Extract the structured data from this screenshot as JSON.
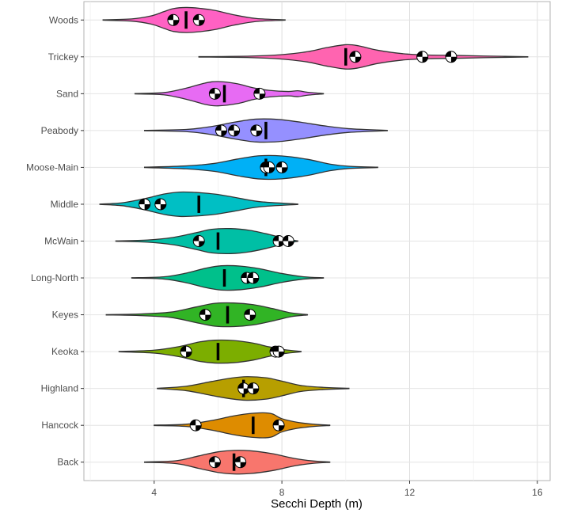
{
  "chart_data": {
    "type": "violin",
    "title": "",
    "xlabel": "Secchi Depth (m)",
    "ylabel": "",
    "xlim": [
      1.8,
      16.4
    ],
    "x_ticks": [
      4,
      8,
      12,
      16
    ],
    "x_minor_ticks": [
      2,
      6,
      10,
      14
    ],
    "grid": true,
    "legend": "none",
    "categories": [
      "Woods",
      "Trickey",
      "Sand",
      "Peabody",
      "Moose-Main",
      "Middle",
      "McWain",
      "Long-North",
      "Keyes",
      "Keoka",
      "Highland",
      "Hancock",
      "Back"
    ],
    "series": [
      {
        "name": "Woods",
        "color": "#F8766D",
        "fill": "#FF61C3",
        "min": 2.4,
        "max": 8.1,
        "median": 5.0,
        "profile": [
          [
            2.4,
            0.01
          ],
          [
            3.3,
            0.06
          ],
          [
            3.9,
            0.22
          ],
          [
            4.3,
            0.45
          ],
          [
            4.6,
            0.62
          ],
          [
            5.0,
            0.68
          ],
          [
            5.4,
            0.64
          ],
          [
            5.9,
            0.52
          ],
          [
            6.5,
            0.28
          ],
          [
            7.2,
            0.08
          ],
          [
            8.1,
            0.01
          ]
        ],
        "markers": [
          4.6,
          5.4
        ]
      },
      {
        "name": "Trickey",
        "fill": "#FF64B0",
        "min": 5.4,
        "max": 15.7,
        "median": 10.0,
        "profile": [
          [
            5.4,
            0.01
          ],
          [
            7.0,
            0.04
          ],
          [
            8.0,
            0.12
          ],
          [
            8.8,
            0.28
          ],
          [
            9.4,
            0.5
          ],
          [
            10.0,
            0.66
          ],
          [
            10.4,
            0.6
          ],
          [
            11.0,
            0.36
          ],
          [
            11.8,
            0.17
          ],
          [
            12.6,
            0.1
          ],
          [
            13.4,
            0.08
          ],
          [
            14.5,
            0.04
          ],
          [
            15.7,
            0.01
          ]
        ],
        "markers": [
          10.3,
          12.4,
          13.3
        ]
      },
      {
        "name": "Sand",
        "fill": "#E76BF3",
        "min": 3.4,
        "max": 9.3,
        "median": 6.2,
        "profile": [
          [
            3.4,
            0.01
          ],
          [
            4.3,
            0.06
          ],
          [
            5.0,
            0.3
          ],
          [
            5.6,
            0.58
          ],
          [
            6.0,
            0.66
          ],
          [
            6.6,
            0.54
          ],
          [
            7.1,
            0.32
          ],
          [
            7.6,
            0.18
          ],
          [
            8.2,
            0.12
          ],
          [
            8.5,
            0.16
          ],
          [
            8.8,
            0.08
          ],
          [
            9.3,
            0.01
          ]
        ],
        "markers": [
          5.9,
          7.3
        ]
      },
      {
        "name": "Peabody",
        "fill": "#9590FF",
        "min": 3.7,
        "max": 11.3,
        "median": 7.5,
        "profile": [
          [
            3.7,
            0.01
          ],
          [
            5.0,
            0.06
          ],
          [
            5.8,
            0.22
          ],
          [
            6.5,
            0.45
          ],
          [
            7.2,
            0.62
          ],
          [
            7.9,
            0.6
          ],
          [
            8.6,
            0.45
          ],
          [
            9.3,
            0.26
          ],
          [
            10.1,
            0.1
          ],
          [
            11.3,
            0.01
          ]
        ],
        "markers": [
          6.1,
          6.5,
          7.2
        ]
      },
      {
        "name": "Moose-Main",
        "fill": "#00B0F6",
        "min": 3.7,
        "max": 11.0,
        "median": 7.5,
        "profile": [
          [
            3.7,
            0.01
          ],
          [
            5.0,
            0.08
          ],
          [
            5.9,
            0.22
          ],
          [
            6.6,
            0.45
          ],
          [
            7.3,
            0.63
          ],
          [
            8.0,
            0.62
          ],
          [
            8.8,
            0.44
          ],
          [
            9.5,
            0.18
          ],
          [
            10.1,
            0.06
          ],
          [
            11.0,
            0.01
          ]
        ],
        "markers": [
          7.5,
          7.6,
          8.0
        ]
      },
      {
        "name": "Middle",
        "fill": "#00BFC4",
        "min": 2.3,
        "max": 8.5,
        "median": 5.4,
        "profile": [
          [
            2.3,
            0.01
          ],
          [
            3.0,
            0.08
          ],
          [
            3.7,
            0.3
          ],
          [
            4.3,
            0.55
          ],
          [
            4.8,
            0.66
          ],
          [
            5.3,
            0.64
          ],
          [
            5.9,
            0.55
          ],
          [
            6.5,
            0.38
          ],
          [
            7.3,
            0.14
          ],
          [
            8.5,
            0.01
          ]
        ],
        "markers": [
          3.7,
          4.2
        ]
      },
      {
        "name": "McWain",
        "fill": "#00BFA5",
        "min": 2.8,
        "max": 8.5,
        "median": 6.0,
        "profile": [
          [
            2.8,
            0.01
          ],
          [
            3.8,
            0.06
          ],
          [
            4.6,
            0.2
          ],
          [
            5.3,
            0.45
          ],
          [
            5.8,
            0.64
          ],
          [
            6.4,
            0.68
          ],
          [
            7.0,
            0.58
          ],
          [
            7.6,
            0.36
          ],
          [
            8.1,
            0.14
          ],
          [
            8.5,
            0.01
          ]
        ],
        "markers": [
          5.4,
          7.9,
          8.2
        ]
      },
      {
        "name": "Long-North",
        "fill": "#00C08B",
        "min": 3.3,
        "max": 9.3,
        "median": 6.2,
        "profile": [
          [
            3.3,
            0.01
          ],
          [
            4.3,
            0.06
          ],
          [
            5.0,
            0.26
          ],
          [
            5.6,
            0.52
          ],
          [
            6.1,
            0.66
          ],
          [
            6.7,
            0.64
          ],
          [
            7.3,
            0.5
          ],
          [
            8.0,
            0.24
          ],
          [
            8.7,
            0.06
          ],
          [
            9.3,
            0.01
          ]
        ],
        "markers": [
          6.9,
          7.1
        ]
      },
      {
        "name": "Keyes",
        "fill": "#31B425",
        "min": 2.5,
        "max": 8.8,
        "median": 6.3,
        "profile": [
          [
            2.5,
            0.01
          ],
          [
            3.5,
            0.04
          ],
          [
            4.5,
            0.14
          ],
          [
            5.3,
            0.42
          ],
          [
            5.9,
            0.62
          ],
          [
            6.5,
            0.64
          ],
          [
            7.1,
            0.55
          ],
          [
            7.7,
            0.34
          ],
          [
            8.3,
            0.1
          ],
          [
            8.8,
            0.01
          ]
        ],
        "markers": [
          5.6,
          7.0
        ]
      },
      {
        "name": "Keoka",
        "fill": "#7CAE00",
        "min": 2.9,
        "max": 8.6,
        "median": 6.0,
        "profile": [
          [
            2.9,
            0.01
          ],
          [
            4.0,
            0.08
          ],
          [
            4.8,
            0.28
          ],
          [
            5.4,
            0.52
          ],
          [
            5.9,
            0.62
          ],
          [
            6.5,
            0.6
          ],
          [
            7.1,
            0.46
          ],
          [
            7.6,
            0.26
          ],
          [
            8.1,
            0.1
          ],
          [
            8.6,
            0.01
          ]
        ],
        "markers": [
          5.0,
          7.8,
          7.9
        ]
      },
      {
        "name": "Highland",
        "fill": "#B79F00",
        "min": 4.1,
        "max": 10.1,
        "median": 6.8,
        "profile": [
          [
            4.1,
            0.01
          ],
          [
            5.0,
            0.12
          ],
          [
            5.8,
            0.38
          ],
          [
            6.4,
            0.56
          ],
          [
            6.9,
            0.64
          ],
          [
            7.5,
            0.58
          ],
          [
            8.0,
            0.4
          ],
          [
            8.6,
            0.16
          ],
          [
            9.3,
            0.06
          ],
          [
            10.1,
            0.01
          ]
        ],
        "markers": [
          6.8,
          7.1
        ]
      },
      {
        "name": "Hancock",
        "fill": "#DE8C00",
        "min": 4.0,
        "max": 9.5,
        "median": 7.1,
        "profile": [
          [
            4.0,
            0.01
          ],
          [
            5.0,
            0.06
          ],
          [
            5.8,
            0.26
          ],
          [
            6.4,
            0.48
          ],
          [
            6.9,
            0.62
          ],
          [
            7.4,
            0.68
          ],
          [
            7.7,
            0.62
          ],
          [
            8.0,
            0.36
          ],
          [
            8.5,
            0.16
          ],
          [
            9.0,
            0.06
          ],
          [
            9.5,
            0.01
          ]
        ],
        "markers": [
          5.3,
          7.9
        ]
      },
      {
        "name": "Back",
        "fill": "#F8766D",
        "min": 3.7,
        "max": 9.5,
        "median": 6.5,
        "profile": [
          [
            3.7,
            0.01
          ],
          [
            4.7,
            0.08
          ],
          [
            5.4,
            0.34
          ],
          [
            6.0,
            0.56
          ],
          [
            6.5,
            0.64
          ],
          [
            7.0,
            0.62
          ],
          [
            7.7,
            0.46
          ],
          [
            8.4,
            0.2
          ],
          [
            9.0,
            0.06
          ],
          [
            9.5,
            0.01
          ]
        ],
        "markers": [
          5.9,
          6.7
        ]
      }
    ]
  }
}
